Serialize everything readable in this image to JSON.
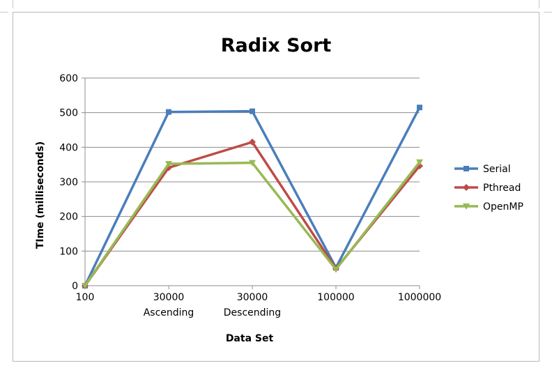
{
  "chart_data": {
    "type": "line",
    "title": "Radix Sort",
    "xlabel": "Data Set",
    "ylabel": "TIme (milliseconds)",
    "categories": [
      [
        "100"
      ],
      [
        "30000",
        "Ascending"
      ],
      [
        "30000",
        "Descending"
      ],
      [
        "100000"
      ],
      [
        "1000000"
      ]
    ],
    "ylim": [
      0,
      600
    ],
    "yticks": [
      0,
      100,
      200,
      300,
      400,
      500,
      600
    ],
    "grid": true,
    "legend": "right",
    "series": [
      {
        "name": "Serial",
        "color": "#4a7ebb",
        "marker": "square",
        "values": [
          0,
          502,
          504,
          52,
          515
        ]
      },
      {
        "name": "Pthread",
        "color": "#be4b48",
        "marker": "diamond",
        "values": [
          0,
          341,
          415,
          49,
          346
        ]
      },
      {
        "name": "OpenMP",
        "color": "#98b954",
        "marker": "triangle-down",
        "values": [
          0,
          352,
          355,
          47,
          357
        ]
      }
    ]
  }
}
